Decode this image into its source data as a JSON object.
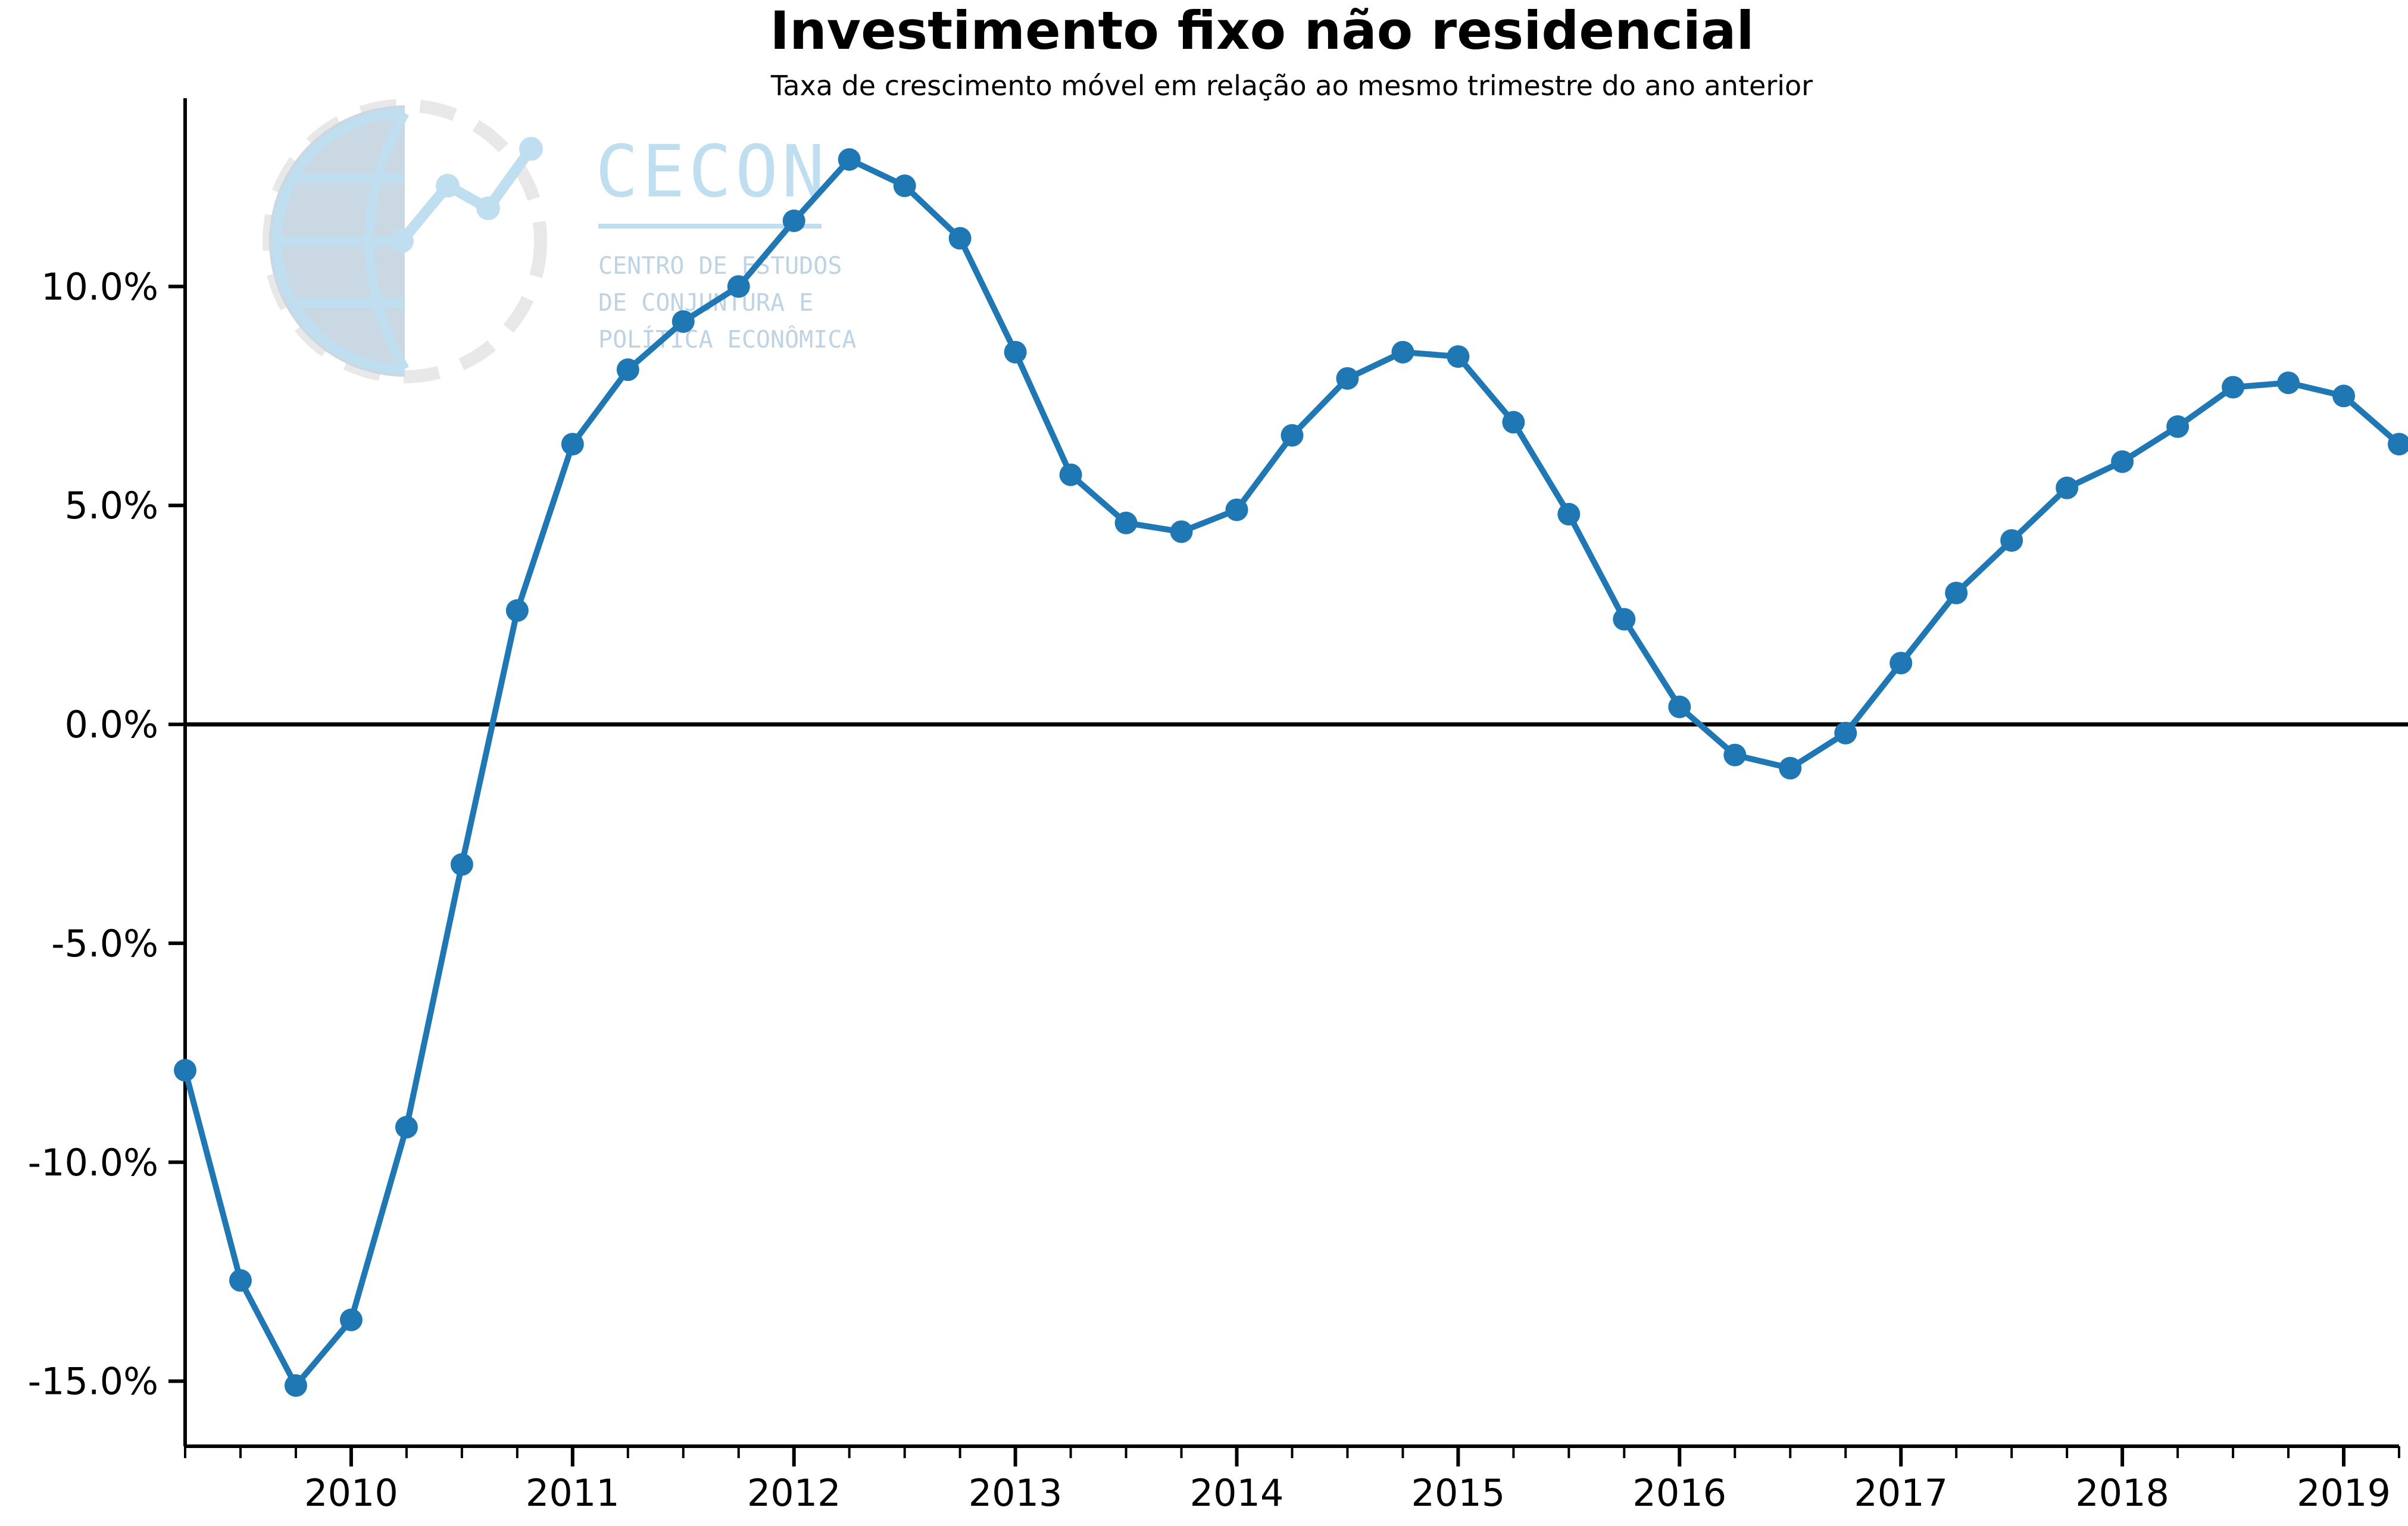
{
  "chart_data": {
    "type": "line",
    "title": "Investimento fixo não residencial",
    "subtitle": "Taxa de crescimento móvel em relação ao mesmo trimestre do ano anterior",
    "xlabel": "",
    "ylabel": "",
    "xlim": [
      "2009-Q2",
      "2019-Q2"
    ],
    "ylim": [
      -16.5,
      14.5
    ],
    "y_ticks": [
      -15,
      -10,
      -5,
      0,
      5,
      10
    ],
    "y_tick_labels": [
      "-15.0%",
      "-10.0%",
      "-5.0%",
      "0.0%",
      "5.0%",
      "10.0%"
    ],
    "x_tick_labels": [
      "2010",
      "2011",
      "2012",
      "2013",
      "2014",
      "2015",
      "2016",
      "2017",
      "2018",
      "2019"
    ],
    "zero_line": true,
    "grid": false,
    "legend": "none",
    "series_color": "#1f77b4",
    "series": [
      {
        "x": [
          "2009-Q2",
          "2009-Q3",
          "2009-Q4",
          "2010-Q1",
          "2010-Q2",
          "2010-Q3",
          "2010-Q4",
          "2011-Q1",
          "2011-Q2",
          "2011-Q3",
          "2011-Q4",
          "2012-Q1",
          "2012-Q2",
          "2012-Q3",
          "2012-Q4",
          "2013-Q1",
          "2013-Q2",
          "2013-Q3",
          "2013-Q4",
          "2014-Q1",
          "2014-Q2",
          "2014-Q3",
          "2014-Q4",
          "2015-Q1",
          "2015-Q2",
          "2015-Q3",
          "2015-Q4",
          "2016-Q1",
          "2016-Q2",
          "2016-Q3",
          "2016-Q4",
          "2017-Q1",
          "2017-Q2",
          "2017-Q3",
          "2017-Q4",
          "2018-Q1",
          "2018-Q2",
          "2018-Q3",
          "2018-Q4",
          "2019-Q1",
          "2019-Q2"
        ],
        "values": [
          -7.9,
          -12.7,
          -15.1,
          -13.6,
          -9.2,
          -3.2,
          2.6,
          6.4,
          8.1,
          9.2,
          10.0,
          11.5,
          12.9,
          12.3,
          11.1,
          8.5,
          5.7,
          4.6,
          4.4,
          4.9,
          6.6,
          7.9,
          8.5,
          8.4,
          6.9,
          4.8,
          2.4,
          0.4,
          -0.7,
          -1.0,
          -0.2,
          1.4,
          3.0,
          4.2,
          5.4,
          6.0,
          6.8,
          7.7,
          7.8,
          7.5,
          6.4
        ]
      }
    ]
  },
  "watermark": {
    "name": "CECON",
    "line1": "CENTRO DE ESTUDOS",
    "line2": "DE CONJUNTURA E",
    "line3": "POLÍTICA ECONÔMICA"
  }
}
